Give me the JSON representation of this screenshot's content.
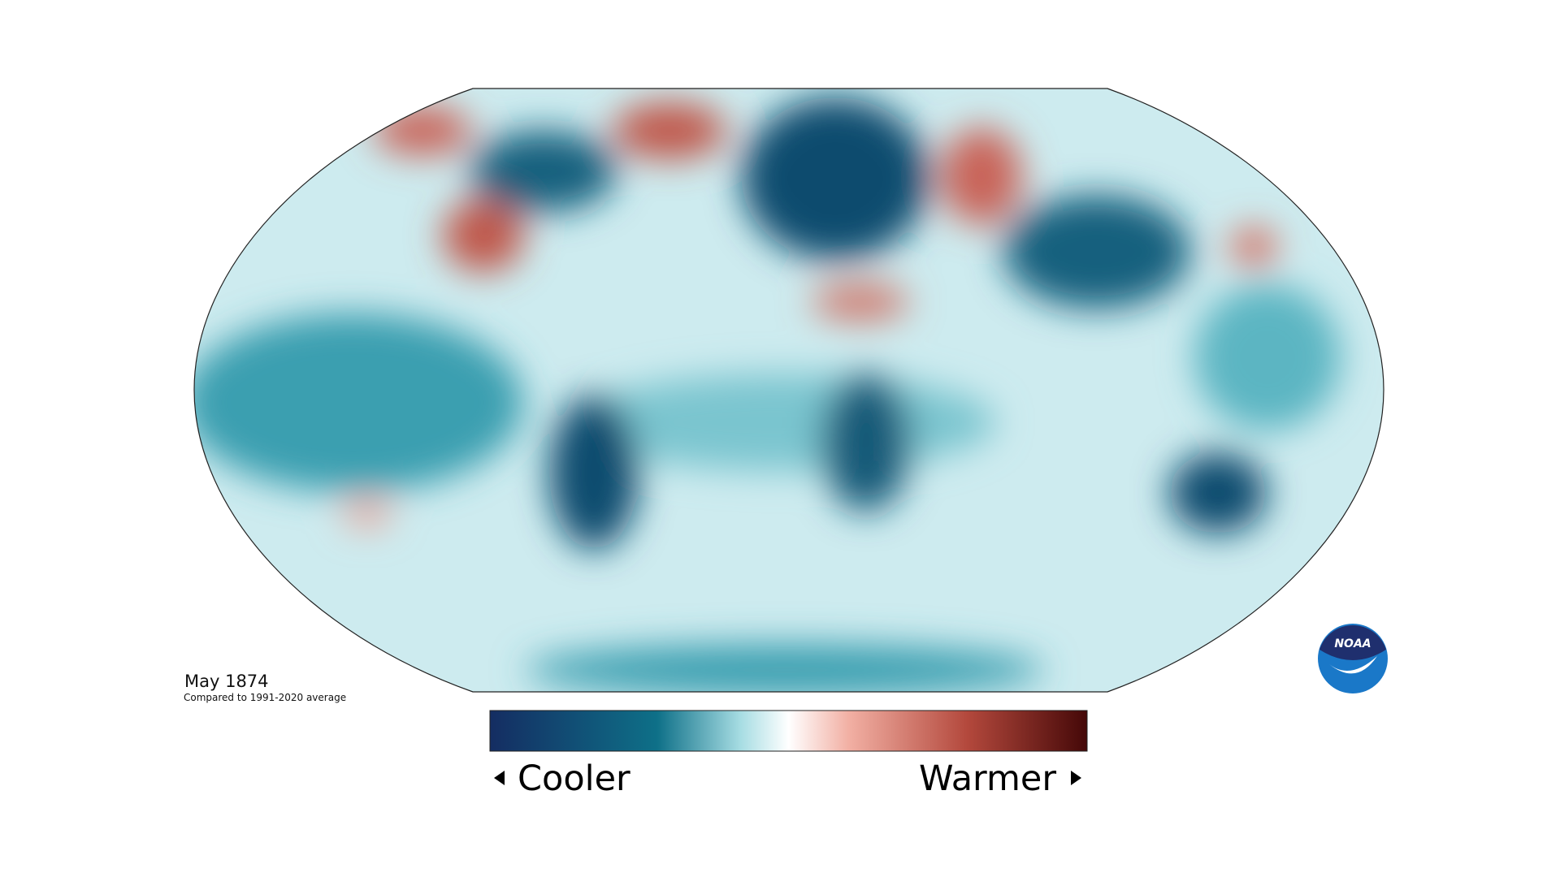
{
  "header": {
    "title": "May 1874",
    "subtitle": "Compared to 1991-2020 average"
  },
  "legend": {
    "low": "Cooler",
    "high": "Warmer"
  },
  "logo": {
    "text": "NOAA"
  }
}
